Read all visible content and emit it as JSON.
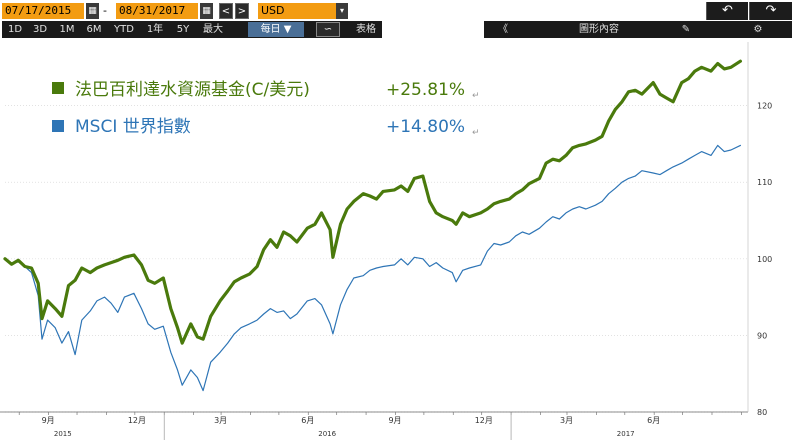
{
  "toolbar": {
    "start_date": "07/17/2015",
    "end_date": "08/31/2017",
    "date_separator": "-",
    "prev_label": "<",
    "next_label": ">",
    "currency": "USD",
    "currency_drop": "▾",
    "calendar_icon": "▦",
    "undo_icon": "↶",
    "redo_icon": "↷",
    "periods": [
      "1D",
      "3D",
      "1M",
      "6M",
      "YTD",
      "1年",
      "5Y",
      "最大"
    ],
    "frequency": "每日 ▼",
    "chart_type_icon": "∽",
    "table_label": "表格",
    "collapse_label": "《",
    "chart_content_label": "圖形內容",
    "edit_icon": "✎",
    "settings_icon": "⚙"
  },
  "colors": {
    "fund": "#4a7a0c",
    "index": "#2e75b6",
    "toolbar_bg": "#1a1a1a",
    "accent": "#f39c12"
  },
  "chart_data": {
    "type": "line",
    "title": "",
    "xlabel": "",
    "ylabel": "",
    "ylim": [
      80,
      127
    ],
    "y_ticks": [
      "80",
      "90",
      "100",
      "110",
      "120"
    ],
    "x_ticks": [
      "9月",
      "12月",
      "3月",
      "6月",
      "9月",
      "12月",
      "3月",
      "6月"
    ],
    "years": [
      "2015",
      "2016",
      "2017"
    ],
    "legend": [
      {
        "name": "法巴百利達水資源基金(C/美元)",
        "value": "+25.81%",
        "mark": "↵"
      },
      {
        "name": "MSCI 世界指數",
        "value": "+14.80%",
        "mark": "↵"
      }
    ],
    "series": [
      {
        "name": "法巴百利達水資源基金(C/美元)",
        "x": [
          "2015-07-17",
          "2015-07-24",
          "2015-07-31",
          "2015-08-07",
          "2015-08-14",
          "2015-08-21",
          "2015-08-25",
          "2015-08-31",
          "2015-09-08",
          "2015-09-15",
          "2015-09-22",
          "2015-09-29",
          "2015-10-06",
          "2015-10-15",
          "2015-10-22",
          "2015-10-30",
          "2015-11-06",
          "2015-11-13",
          "2015-11-20",
          "2015-11-30",
          "2015-12-08",
          "2015-12-15",
          "2015-12-22",
          "2015-12-31",
          "2016-01-08",
          "2016-01-15",
          "2016-01-20",
          "2016-01-29",
          "2016-02-05",
          "2016-02-11",
          "2016-02-19",
          "2016-02-29",
          "2016-03-08",
          "2016-03-15",
          "2016-03-22",
          "2016-03-31",
          "2016-04-08",
          "2016-04-15",
          "2016-04-22",
          "2016-04-29",
          "2016-05-06",
          "2016-05-13",
          "2016-05-20",
          "2016-05-31",
          "2016-06-08",
          "2016-06-15",
          "2016-06-24",
          "2016-06-27",
          "2016-07-05",
          "2016-07-12",
          "2016-07-19",
          "2016-07-29",
          "2016-08-05",
          "2016-08-12",
          "2016-08-19",
          "2016-08-31",
          "2016-09-07",
          "2016-09-14",
          "2016-09-21",
          "2016-09-30",
          "2016-10-07",
          "2016-10-14",
          "2016-10-21",
          "2016-10-31",
          "2016-11-04",
          "2016-11-11",
          "2016-11-18",
          "2016-11-30",
          "2016-12-07",
          "2016-12-14",
          "2016-12-21",
          "2016-12-30",
          "2017-01-06",
          "2017-01-13",
          "2017-01-20",
          "2017-01-31",
          "2017-02-07",
          "2017-02-14",
          "2017-02-21",
          "2017-02-28",
          "2017-03-07",
          "2017-03-14",
          "2017-03-21",
          "2017-03-31",
          "2017-04-07",
          "2017-04-14",
          "2017-04-21",
          "2017-04-28",
          "2017-05-05",
          "2017-05-12",
          "2017-05-19",
          "2017-05-31",
          "2017-06-07",
          "2017-06-14",
          "2017-06-21",
          "2017-06-30",
          "2017-07-07",
          "2017-07-14",
          "2017-07-21",
          "2017-07-31",
          "2017-08-07",
          "2017-08-14",
          "2017-08-21",
          "2017-08-31"
        ],
        "values": [
          100.0,
          99.3,
          99.8,
          99.0,
          98.8,
          96.8,
          92.2,
          94.5,
          93.5,
          92.5,
          96.5,
          97.2,
          98.8,
          98.2,
          98.8,
          99.2,
          99.5,
          99.8,
          100.2,
          100.5,
          99.2,
          97.2,
          96.8,
          97.5,
          93.5,
          91.0,
          89.0,
          91.5,
          89.8,
          89.5,
          92.5,
          94.5,
          95.8,
          97.0,
          97.5,
          98.0,
          99.0,
          101.2,
          102.5,
          101.5,
          103.5,
          103.0,
          102.2,
          104.0,
          104.5,
          106.0,
          103.8,
          100.2,
          104.5,
          106.5,
          107.5,
          108.5,
          108.2,
          107.8,
          108.8,
          109.0,
          109.5,
          108.8,
          110.5,
          110.8,
          107.5,
          106.0,
          105.5,
          105.0,
          104.5,
          106.0,
          105.5,
          106.0,
          106.5,
          107.2,
          107.5,
          107.8,
          108.5,
          109.0,
          109.8,
          110.5,
          112.5,
          113.0,
          112.8,
          113.5,
          114.5,
          114.8,
          115.0,
          115.5,
          116.0,
          118.0,
          119.5,
          120.5,
          121.8,
          122.0,
          121.5,
          123.0,
          121.5,
          121.0,
          120.5,
          123.0,
          123.5,
          124.5,
          125.0,
          124.5,
          125.5,
          124.8,
          125.0,
          125.8
        ]
      },
      {
        "name": "MSCI 世界指數",
        "x": [
          "2015-07-17",
          "2015-07-24",
          "2015-07-31",
          "2015-08-07",
          "2015-08-14",
          "2015-08-21",
          "2015-08-25",
          "2015-08-31",
          "2015-09-08",
          "2015-09-15",
          "2015-09-22",
          "2015-09-29",
          "2015-10-06",
          "2015-10-15",
          "2015-10-22",
          "2015-10-30",
          "2015-11-06",
          "2015-11-13",
          "2015-11-20",
          "2015-11-30",
          "2015-12-08",
          "2015-12-15",
          "2015-12-22",
          "2015-12-31",
          "2016-01-08",
          "2016-01-15",
          "2016-01-20",
          "2016-01-29",
          "2016-02-05",
          "2016-02-11",
          "2016-02-19",
          "2016-02-29",
          "2016-03-08",
          "2016-03-15",
          "2016-03-22",
          "2016-03-31",
          "2016-04-08",
          "2016-04-15",
          "2016-04-22",
          "2016-04-29",
          "2016-05-06",
          "2016-05-13",
          "2016-05-20",
          "2016-05-31",
          "2016-06-08",
          "2016-06-15",
          "2016-06-24",
          "2016-06-27",
          "2016-07-05",
          "2016-07-12",
          "2016-07-19",
          "2016-07-29",
          "2016-08-05",
          "2016-08-12",
          "2016-08-19",
          "2016-08-31",
          "2016-09-07",
          "2016-09-14",
          "2016-09-21",
          "2016-09-30",
          "2016-10-07",
          "2016-10-14",
          "2016-10-21",
          "2016-10-31",
          "2016-11-04",
          "2016-11-11",
          "2016-11-18",
          "2016-11-30",
          "2016-12-07",
          "2016-12-14",
          "2016-12-21",
          "2016-12-30",
          "2017-01-06",
          "2017-01-13",
          "2017-01-20",
          "2017-01-31",
          "2017-02-07",
          "2017-02-14",
          "2017-02-21",
          "2017-02-28",
          "2017-03-07",
          "2017-03-14",
          "2017-03-21",
          "2017-03-31",
          "2017-04-07",
          "2017-04-14",
          "2017-04-21",
          "2017-04-28",
          "2017-05-05",
          "2017-05-12",
          "2017-05-19",
          "2017-05-31",
          "2017-06-07",
          "2017-06-14",
          "2017-06-21",
          "2017-06-30",
          "2017-07-07",
          "2017-07-14",
          "2017-07-21",
          "2017-07-31",
          "2017-08-07",
          "2017-08-14",
          "2017-08-21",
          "2017-08-31"
        ],
        "values": [
          100.0,
          99.4,
          99.6,
          99.0,
          98.2,
          95.2,
          89.5,
          92.0,
          91.0,
          89.0,
          90.5,
          87.5,
          92.0,
          93.2,
          94.5,
          95.0,
          94.2,
          93.0,
          95.0,
          95.5,
          93.5,
          91.5,
          90.8,
          91.2,
          87.8,
          85.5,
          83.5,
          85.5,
          84.5,
          82.8,
          86.5,
          87.8,
          89.0,
          90.2,
          91.0,
          91.5,
          92.0,
          92.8,
          93.5,
          93.0,
          93.2,
          92.2,
          92.8,
          94.5,
          94.8,
          94.0,
          91.5,
          90.2,
          94.0,
          96.0,
          97.5,
          97.8,
          98.5,
          98.8,
          99.0,
          99.2,
          100.0,
          99.2,
          100.2,
          100.0,
          99.0,
          99.5,
          98.8,
          98.2,
          97.0,
          98.5,
          98.8,
          99.2,
          101.0,
          102.0,
          101.8,
          102.2,
          103.0,
          103.5,
          103.2,
          104.0,
          104.8,
          105.5,
          105.2,
          106.0,
          106.5,
          106.8,
          106.5,
          107.0,
          107.5,
          108.5,
          109.2,
          110.0,
          110.5,
          110.8,
          111.5,
          111.2,
          111.0,
          111.5,
          112.0,
          112.5,
          113.0,
          113.5,
          114.0,
          113.5,
          114.8,
          114.0,
          114.2,
          114.8
        ]
      }
    ]
  }
}
